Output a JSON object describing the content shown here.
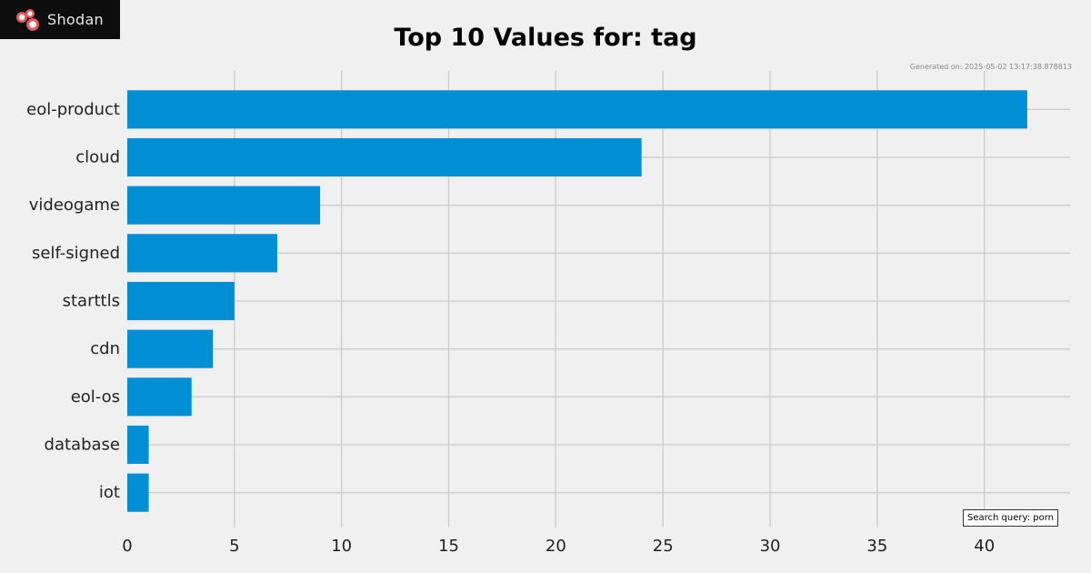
{
  "brand": {
    "name": "Shodan",
    "logo_icon": "shodan-logo-icon"
  },
  "generated_text": "Generated on: 2025-05-02 13:17:38.878813",
  "search_query": "Search query: porn",
  "chart_data": {
    "type": "bar",
    "orientation": "horizontal",
    "title": "Top 10 Values for: tag",
    "categories": [
      "eol-product",
      "cloud",
      "videogame",
      "self-signed",
      "starttls",
      "cdn",
      "eol-os",
      "database",
      "iot"
    ],
    "values": [
      42,
      24,
      9,
      7,
      5,
      4,
      3,
      1,
      1
    ],
    "xlim": [
      0,
      44
    ],
    "xticks": [
      0,
      5,
      10,
      15,
      20,
      25,
      30,
      35,
      40
    ],
    "grid": true,
    "bar_color": "#008fd5",
    "grid_color": "#cbcbcb"
  }
}
